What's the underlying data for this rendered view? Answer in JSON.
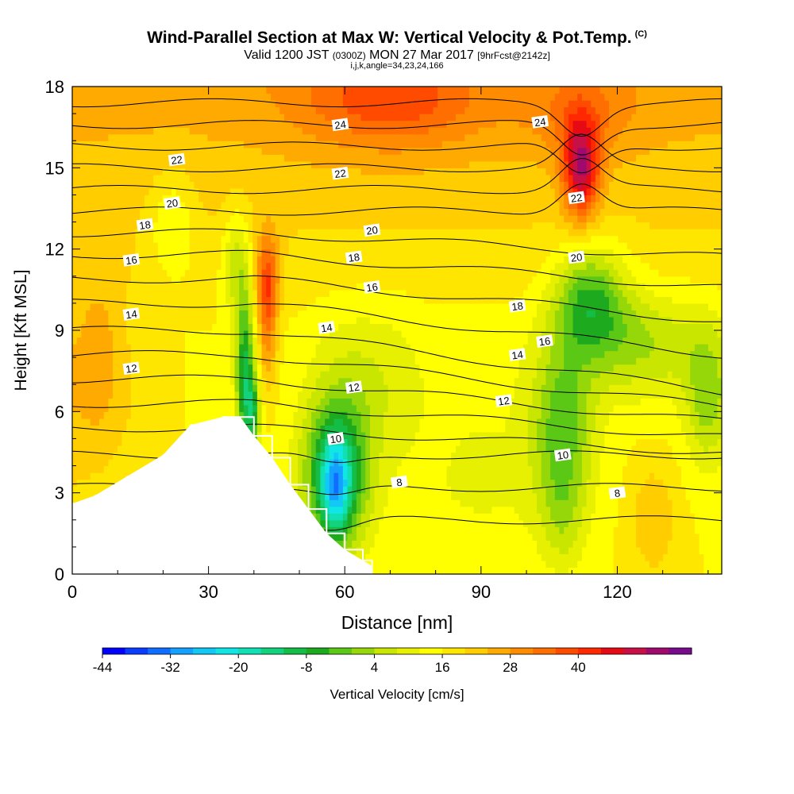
{
  "titles": {
    "main": "Wind-Parallel Section at Max W: Vertical Velocity & Pot.Temp.",
    "mark": "(C)",
    "valid": "Valid 1200 JST",
    "valid_utc": "(0300Z)",
    "valid_date": "MON 27 Mar 2017",
    "forecast": "[9hrFcst@2142z]",
    "params": "i,j,k,angle=34,23,24,166"
  },
  "chart_data": {
    "type": "heatmap",
    "xlabel": "Distance [nm]",
    "ylabel": "Height [Kft MSL]",
    "xlim": [
      0,
      143
    ],
    "ylim": [
      0,
      18
    ],
    "x_ticks": [
      "0",
      "30",
      "60",
      "90",
      "120"
    ],
    "x_tick_values": [
      0,
      30,
      60,
      90,
      120
    ],
    "y_ticks": [
      "0",
      "3",
      "6",
      "9",
      "12",
      "15",
      "18"
    ],
    "y_tick_values": [
      0,
      3,
      6,
      9,
      12,
      15,
      18
    ],
    "colorbar": {
      "label": "Vertical Velocity [cm/s]",
      "tick_labels": [
        "-44",
        "-32",
        "-20",
        "-8",
        "4",
        "16",
        "28",
        "40"
      ],
      "levels": [
        -44,
        -40,
        -36,
        -32,
        -28,
        -24,
        -20,
        -16,
        -12,
        -8,
        -4,
        0,
        4,
        8,
        12,
        16,
        20,
        24,
        28,
        32,
        36,
        40,
        44
      ],
      "colors": [
        "#0000ff",
        "#0a3cff",
        "#0f6eff",
        "#14a0ff",
        "#12c8f5",
        "#10e6e6",
        "#10e0b4",
        "#12d27d",
        "#14be46",
        "#1eaa1e",
        "#5ac814",
        "#96d70a",
        "#c8e600",
        "#e6f000",
        "#ffff00",
        "#ffe600",
        "#ffcd00",
        "#ffaa00",
        "#ff8c00",
        "#ff6e00",
        "#ff4b00",
        "#ff2800",
        "#e60a14",
        "#c80f46",
        "#a00a6e",
        "#780a8c"
      ]
    },
    "terrain_profile": [
      [
        0,
        0
      ],
      [
        0,
        2.6
      ],
      [
        5,
        2.9
      ],
      [
        12,
        3.6
      ],
      [
        20,
        4.4
      ],
      [
        26,
        5.5
      ],
      [
        33,
        5.8
      ],
      [
        37,
        5.8
      ],
      [
        40,
        5.1
      ],
      [
        44,
        4.3
      ],
      [
        48,
        3.3
      ],
      [
        52,
        2.4
      ],
      [
        56,
        1.5
      ],
      [
        60,
        0.9
      ],
      [
        64,
        0.5
      ],
      [
        66,
        0.3
      ],
      [
        66,
        0
      ]
    ],
    "theta_contour_labels": [
      "8",
      "8",
      "10",
      "10",
      "12",
      "12",
      "12",
      "14",
      "14",
      "14",
      "16",
      "16",
      "16",
      "18",
      "18",
      "18",
      "20",
      "20",
      "20",
      "22",
      "22",
      "22",
      "24",
      "24"
    ],
    "theta_contour_levels": [
      8,
      8,
      10,
      10,
      12,
      12,
      12,
      14,
      14,
      14,
      16,
      16,
      16,
      18,
      18,
      18,
      20,
      20,
      20,
      22,
      22,
      22,
      24,
      24
    ],
    "theta_label_positions": [
      [
        72,
        3.4
      ],
      [
        120,
        3.0
      ],
      [
        58,
        5.0
      ],
      [
        108,
        4.4
      ],
      [
        13,
        7.6
      ],
      [
        62,
        6.9
      ],
      [
        95,
        6.4
      ],
      [
        13,
        9.6
      ],
      [
        56,
        9.1
      ],
      [
        98,
        8.1
      ],
      [
        13,
        11.6
      ],
      [
        66,
        10.6
      ],
      [
        104,
        8.6
      ],
      [
        16,
        12.9
      ],
      [
        62,
        11.7
      ],
      [
        98,
        9.9
      ],
      [
        22,
        13.7
      ],
      [
        66,
        12.7
      ],
      [
        111,
        11.7
      ],
      [
        23,
        15.3
      ],
      [
        59,
        14.8
      ],
      [
        111,
        13.9
      ],
      [
        59,
        16.6
      ],
      [
        103,
        16.7
      ]
    ]
  }
}
